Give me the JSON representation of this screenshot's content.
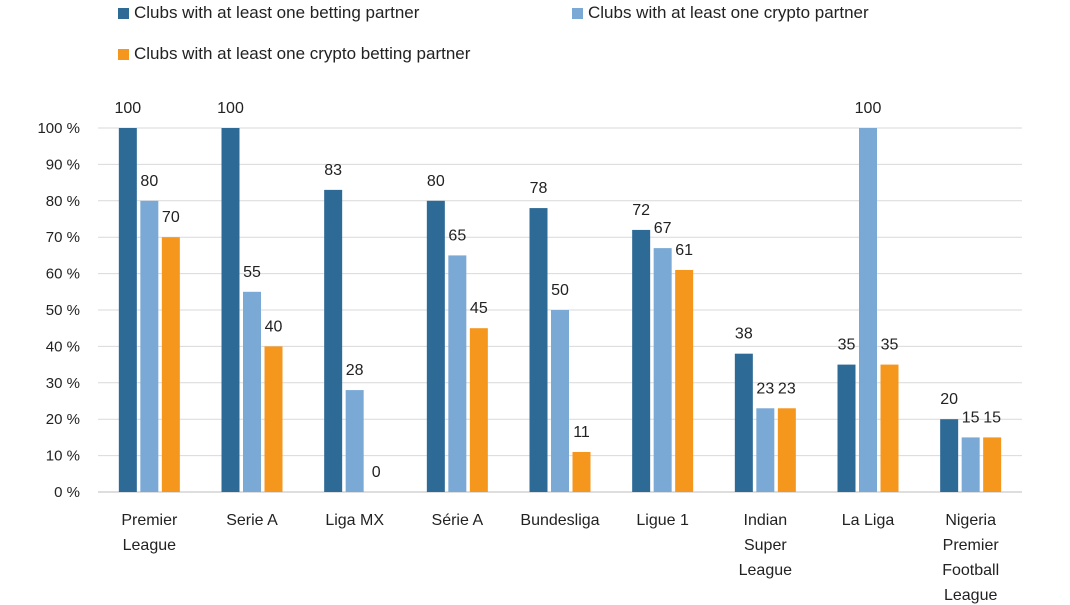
{
  "chart_data": {
    "type": "bar",
    "categories": [
      [
        "Premier",
        "League"
      ],
      [
        "Serie A"
      ],
      [
        "Liga MX"
      ],
      [
        "Série A"
      ],
      [
        "Bundesliga"
      ],
      [
        "Ligue 1"
      ],
      [
        "Indian",
        "Super",
        "League"
      ],
      [
        "La Liga"
      ],
      [
        "Nigeria",
        "Premier",
        "Football",
        "League"
      ]
    ],
    "series": [
      {
        "name": "Clubs with at least one betting partner",
        "color": "#2e6a96",
        "values": [
          100,
          100,
          83,
          80,
          78,
          72,
          38,
          35,
          20
        ]
      },
      {
        "name": "Clubs with at least one crypto partner",
        "color": "#7ba9d6",
        "values": [
          80,
          55,
          28,
          65,
          50,
          67,
          23,
          100,
          15
        ]
      },
      {
        "name": "Clubs with at least one crypto betting partner",
        "color": "#f5961d",
        "values": [
          70,
          40,
          0,
          45,
          11,
          61,
          23,
          35,
          15
        ]
      }
    ],
    "yticks": [
      "0 %",
      "10 %",
      "20 %",
      "30 %",
      "40 %",
      "50 %",
      "60 %",
      "70 %",
      "80 %",
      "90 %",
      "100 %"
    ],
    "ylim": [
      0,
      100
    ],
    "grid": true,
    "legend_position": "top",
    "title": "",
    "xlabel": "",
    "ylabel": ""
  }
}
